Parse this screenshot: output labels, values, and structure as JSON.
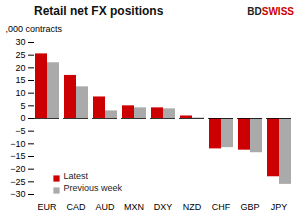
{
  "chart_data": {
    "type": "bar",
    "title": "Retail net FX positions",
    "ylabel": ",000 contracts",
    "categories": [
      "EUR",
      "CAD",
      "AUD",
      "MXN",
      "DXY",
      "NZD",
      "CHF",
      "GBP",
      "JPY"
    ],
    "series": [
      {
        "name": "Latest",
        "color": "#cc0000",
        "values": [
          25.5,
          17.0,
          8.5,
          5.0,
          4.2,
          1.0,
          -12.0,
          -12.5,
          -23.0
        ]
      },
      {
        "name": "Previous week",
        "color": "#aaaaaa",
        "values": [
          22.0,
          12.5,
          3.0,
          4.2,
          3.8,
          0.2,
          -11.5,
          -13.5,
          -26.0
        ]
      }
    ],
    "ylim": [
      -30,
      30
    ],
    "yticks": [
      -30,
      -25,
      -20,
      -15,
      -10,
      -5,
      0,
      5,
      10,
      15,
      20,
      25,
      30
    ],
    "grid": false,
    "legend": "lower left",
    "annotations": [
      {
        "text": "BD",
        "color": "#222222"
      },
      {
        "text": "SWISS",
        "color": "#cc0000"
      }
    ]
  }
}
